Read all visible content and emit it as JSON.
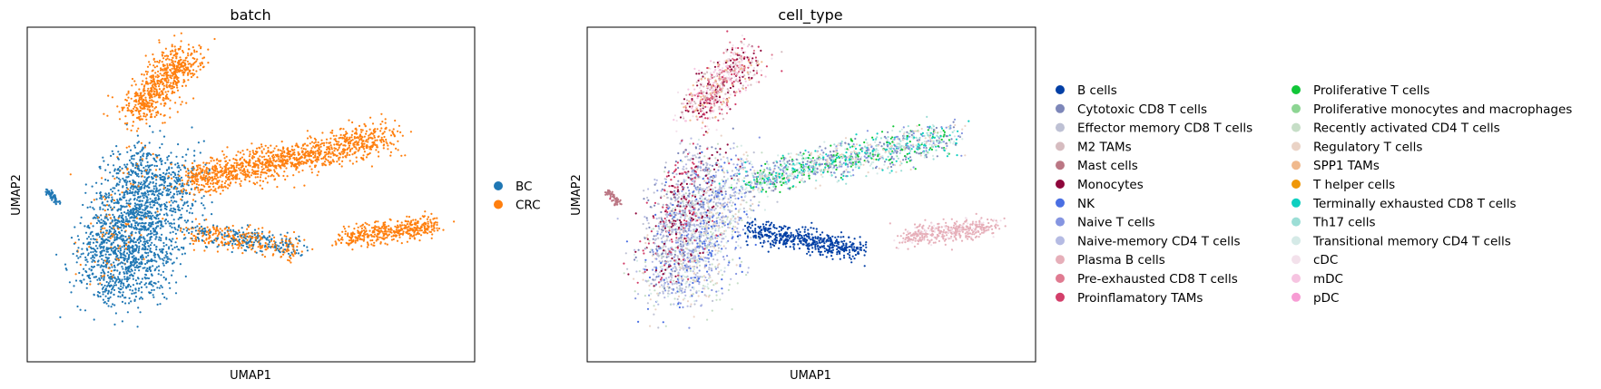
{
  "chart_data": [
    {
      "type": "scatter",
      "title": "batch",
      "xlabel": "UMAP1",
      "ylabel": "UMAP2",
      "grid": false,
      "ticks": false,
      "legend_placement": "right",
      "series": [
        {
          "name": "BC",
          "color": "#1f77b4"
        },
        {
          "name": "CRC",
          "color": "#ff7f0e"
        }
      ]
    },
    {
      "type": "scatter",
      "title": "cell_type",
      "xlabel": "UMAP1",
      "ylabel": "UMAP2",
      "grid": false,
      "ticks": false,
      "legend_placement": "right",
      "series": [
        {
          "name": "B cells",
          "color": "#023fa5"
        },
        {
          "name": "Cytotoxic CD8 T cells",
          "color": "#7d87b9"
        },
        {
          "name": "Effector memory CD8 T cells",
          "color": "#bec1d4"
        },
        {
          "name": "M2 TAMs",
          "color": "#d6bcc0"
        },
        {
          "name": "Mast cells",
          "color": "#bb7784"
        },
        {
          "name": "Monocytes",
          "color": "#8e063b"
        },
        {
          "name": "NK",
          "color": "#4a6fe3"
        },
        {
          "name": "Naive T cells",
          "color": "#8595e1"
        },
        {
          "name": "Naive-memory CD4 T cells",
          "color": "#b5bbe3"
        },
        {
          "name": "Plasma B cells",
          "color": "#e6afb9"
        },
        {
          "name": "Pre-exhausted CD8 T cells",
          "color": "#e07b91"
        },
        {
          "name": "Proinflamatory TAMs",
          "color": "#d33f6a"
        },
        {
          "name": "Proliferative T cells",
          "color": "#11c638"
        },
        {
          "name": "Proliferative monocytes and macrophages",
          "color": "#8dd593"
        },
        {
          "name": "Recently activated CD4 T cells",
          "color": "#c6dec7"
        },
        {
          "name": "Regulatory T cells",
          "color": "#ead3c6"
        },
        {
          "name": "SPP1 TAMs",
          "color": "#f0b98d"
        },
        {
          "name": "T helper cells",
          "color": "#ef9708"
        },
        {
          "name": "Terminally exhausted CD8 T cells",
          "color": "#0fcfc0"
        },
        {
          "name": "Th17 cells",
          "color": "#9cded6"
        },
        {
          "name": "Transitional memory CD4 T cells",
          "color": "#d5eae7"
        },
        {
          "name": "cDC",
          "color": "#f3e1eb"
        },
        {
          "name": "mDC",
          "color": "#f6c4e1"
        },
        {
          "name": "pDC",
          "color": "#f79cd4"
        }
      ]
    }
  ]
}
